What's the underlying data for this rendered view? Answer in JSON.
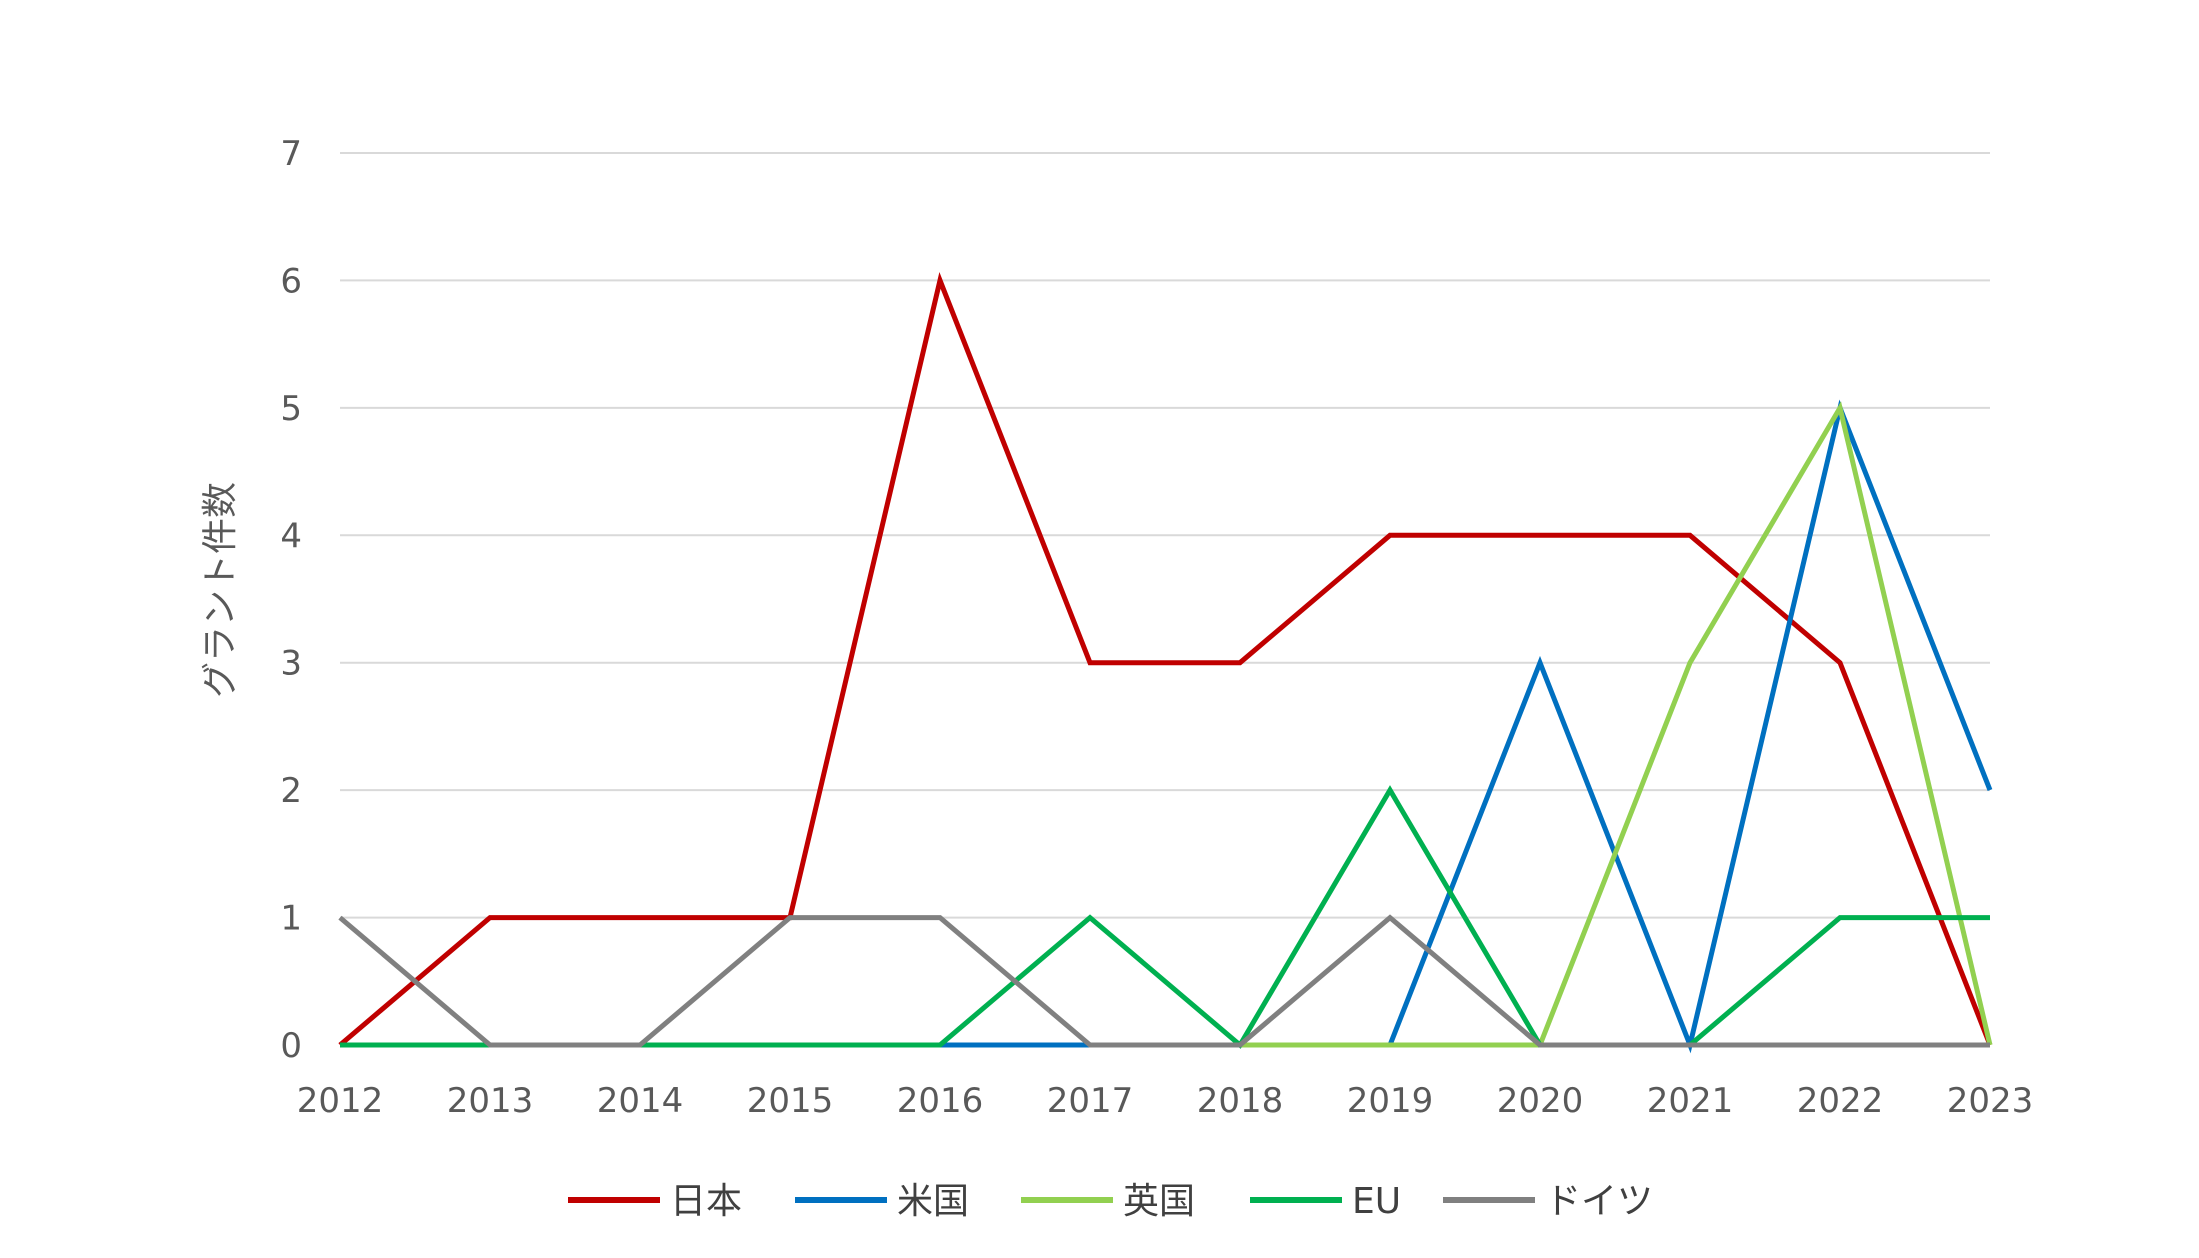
{
  "chart_data": {
    "type": "line",
    "ylabel": "グラント件数",
    "xlabel": "",
    "ylim": [
      0,
      7
    ],
    "yticks": [
      0,
      1,
      2,
      3,
      4,
      5,
      6,
      7
    ],
    "categories": [
      "2012",
      "2013",
      "2014",
      "2015",
      "2016",
      "2017",
      "2018",
      "2019",
      "2020",
      "2021",
      "2022",
      "2023"
    ],
    "grid": true,
    "legend_position": "bottom",
    "series": [
      {
        "name": "日本",
        "color": "#c00000",
        "values": [
          0,
          1,
          1,
          1,
          6,
          3,
          3,
          4,
          4,
          4,
          3,
          0
        ]
      },
      {
        "name": "米国",
        "color": "#0070c0",
        "values": [
          null,
          null,
          null,
          null,
          0,
          0,
          null,
          0,
          3,
          0,
          5,
          2
        ]
      },
      {
        "name": "英国",
        "color": "#92d050",
        "values": [
          null,
          null,
          null,
          null,
          null,
          null,
          0,
          0,
          0,
          3,
          5,
          0
        ]
      },
      {
        "name": "EU",
        "color": "#00b050",
        "values": [
          0,
          0,
          0,
          0,
          0,
          1,
          0,
          2,
          0,
          0,
          1,
          1
        ]
      },
      {
        "name": "ドイツ",
        "color": "#808080",
        "values": [
          1,
          0,
          0,
          1,
          1,
          0,
          0,
          1,
          0,
          0,
          0,
          0
        ]
      }
    ]
  }
}
